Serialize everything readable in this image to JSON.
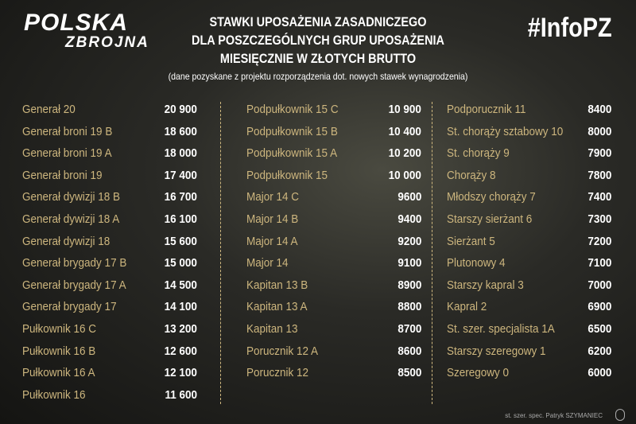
{
  "logo": {
    "line1": "POLSKA",
    "line2": "ZBROJNA"
  },
  "hashtag": "#InfoPZ",
  "title": [
    "STAWKI UPOSAŻENIA ZASADNICZEGO",
    "DLA POSZCZEGÓLNYCH GRUP UPOSAŻENIA",
    "MIESIĘCZNIE W ZŁOTYCH BRUTTO"
  ],
  "subtitle": "(dane pozyskane z projektu rozporządzenia dot. nowych stawek wynagrodzenia)",
  "columns": [
    [
      {
        "name": "Generał 20",
        "value": "20 900"
      },
      {
        "name": "Generał broni 19 B",
        "value": "18 600"
      },
      {
        "name": "Generał broni 19 A",
        "value": "18 000"
      },
      {
        "name": "Generał broni 19",
        "value": "17 400"
      },
      {
        "name": "Generał dywizji 18 B",
        "value": "16 700"
      },
      {
        "name": "Generał dywizji 18 A",
        "value": "16 100"
      },
      {
        "name": "Generał dywizji 18",
        "value": "15 600"
      },
      {
        "name": "Generał brygady 17 B",
        "value": "15 000"
      },
      {
        "name": "Generał brygady 17 A",
        "value": "14 500"
      },
      {
        "name": "Generał brygady 17",
        "value": "14 100"
      },
      {
        "name": "Pułkownik 16 C",
        "value": "13 200"
      },
      {
        "name": "Pułkownik 16 B",
        "value": "12 600"
      },
      {
        "name": "Pułkownik 16 A",
        "value": "12 100"
      },
      {
        "name": "Pułkownik 16",
        "value": "11 600"
      }
    ],
    [
      {
        "name": "Podpułkownik 15 C",
        "value": "10 900"
      },
      {
        "name": "Podpułkownik 15 B",
        "value": "10 400"
      },
      {
        "name": "Podpułkownik 15 A",
        "value": "10 200"
      },
      {
        "name": "Podpułkownik 15",
        "value": "10 000"
      },
      {
        "name": "Major 14 C",
        "value": "9600"
      },
      {
        "name": "Major 14 B",
        "value": "9400"
      },
      {
        "name": "Major 14 A",
        "value": "9200"
      },
      {
        "name": "Major 14",
        "value": "9100"
      },
      {
        "name": "Kapitan 13 B",
        "value": "8900"
      },
      {
        "name": "Kapitan 13 A",
        "value": "8800"
      },
      {
        "name": "Kapitan 13",
        "value": "8700"
      },
      {
        "name": "Porucznik 12 A",
        "value": "8600"
      },
      {
        "name": "Porucznik 12",
        "value": "8500"
      }
    ],
    [
      {
        "name": "Podporucznik 11",
        "value": "8400"
      },
      {
        "name": "St. chorąży sztabowy 10",
        "value": "8000"
      },
      {
        "name": "St. chorąży 9",
        "value": "7900"
      },
      {
        "name": "Chorąży 8",
        "value": "7800"
      },
      {
        "name": "Młodszy chorąży 7",
        "value": "7400"
      },
      {
        "name": "Starszy sierżant 6",
        "value": "7300"
      },
      {
        "name": "Sierżant 5",
        "value": "7200"
      },
      {
        "name": "Plutonowy 4",
        "value": "7100"
      },
      {
        "name": "Starszy kapral 3",
        "value": "7000"
      },
      {
        "name": "Kapral 2",
        "value": "6900"
      },
      {
        "name": "St. szer. specjalista 1A",
        "value": "6500"
      },
      {
        "name": "Starszy szeregowy 1",
        "value": "6200"
      },
      {
        "name": "Szeregowy 0",
        "value": "6000"
      }
    ]
  ],
  "credit": "st. szer. spec. Patryk SZYMANIEC",
  "colors": {
    "name": "#cdb67e",
    "value": "#ffffff"
  }
}
